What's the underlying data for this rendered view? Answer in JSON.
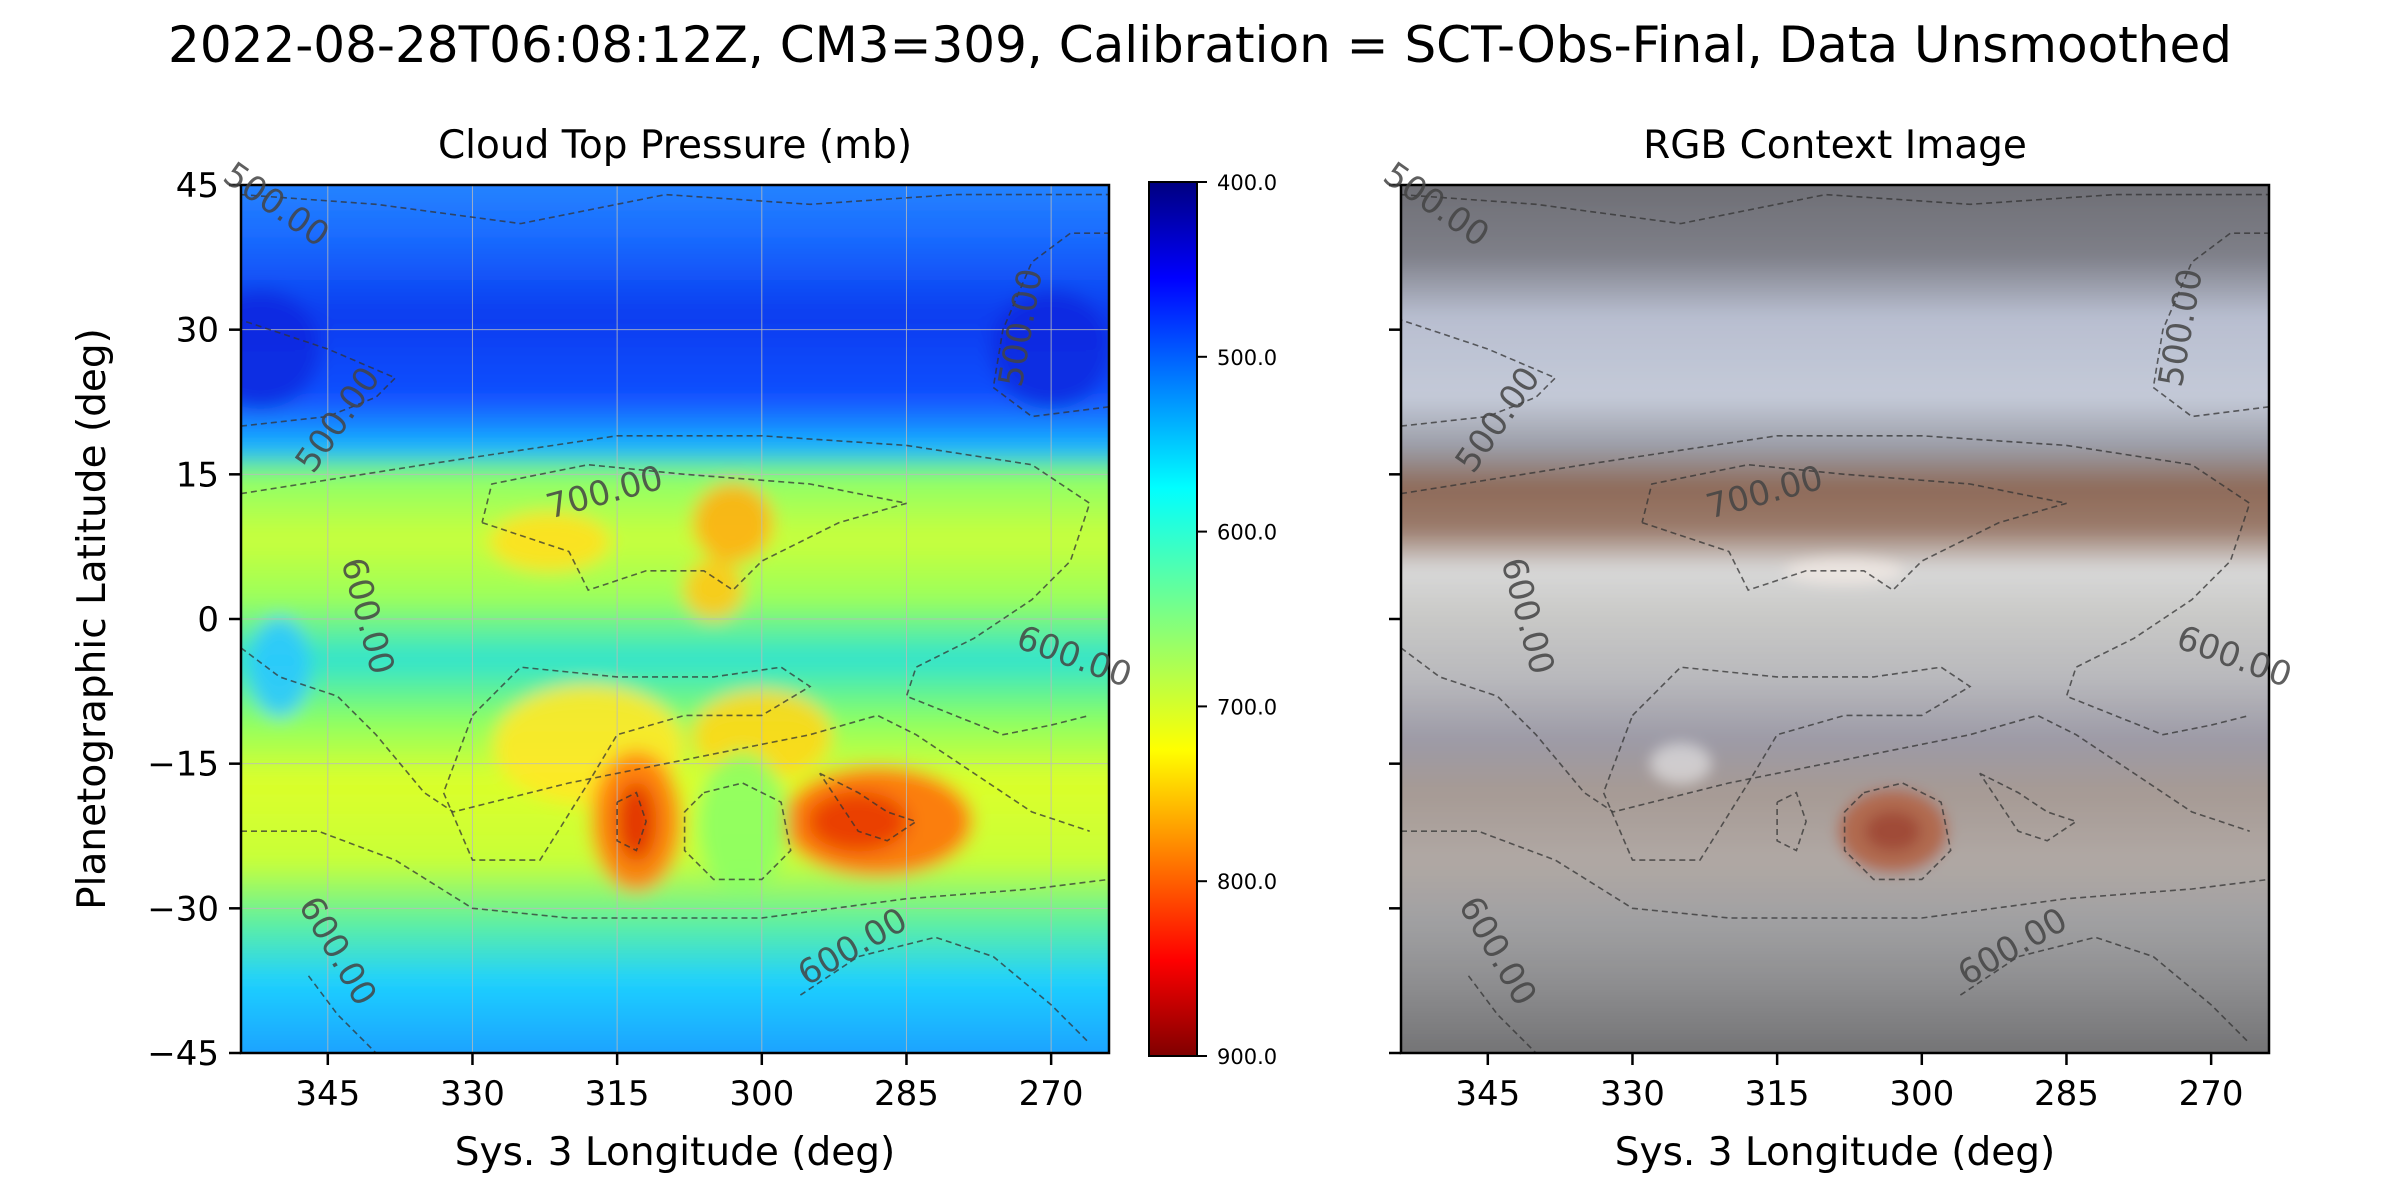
{
  "chart_data": [
    {
      "type": "heatmap",
      "title": "Cloud Top Pressure (mb)",
      "xlabel": "Sys. 3 Longitude (deg)",
      "ylabel": "Planetographic Latitude (deg)",
      "xlim": [
        354,
        264
      ],
      "ylim": [
        -45,
        45
      ],
      "x_ticks": [
        "345",
        "330",
        "315",
        "300",
        "285",
        "270"
      ],
      "x_tick_values": [
        345,
        330,
        315,
        300,
        285,
        270
      ],
      "y_ticks": [
        "45",
        "30",
        "15",
        "0",
        "−15",
        "−30",
        "−45"
      ],
      "y_tick_values": [
        45,
        30,
        15,
        0,
        -15,
        -30,
        -45
      ],
      "colormap": "jet (reversed)",
      "grid": true,
      "colorbar": {
        "range": [
          400,
          900
        ],
        "ticks": [
          "400.0",
          "500.0",
          "600.0",
          "700.0",
          "800.0",
          "900.0"
        ],
        "tick_values": [
          400,
          500,
          600,
          700,
          800,
          900
        ]
      },
      "contour_levels": [
        500,
        600,
        700
      ],
      "contour_labels": [
        {
          "text": "500.00",
          "lon": 351,
          "lat": 42
        },
        {
          "text": "500.00",
          "lon": 343,
          "lat": 20
        },
        {
          "text": "500.00",
          "lon": 272,
          "lat": 30
        },
        {
          "text": "700.00",
          "lon": 316,
          "lat": 12
        },
        {
          "text": "600.00",
          "lon": 342,
          "lat": 0
        },
        {
          "text": "600.00",
          "lon": 268,
          "lat": -5
        },
        {
          "text": "600.00",
          "lon": 345,
          "lat": -35
        },
        {
          "text": "600.00",
          "lon": 290,
          "lat": -35
        }
      ]
    },
    {
      "type": "image",
      "title": "RGB Context Image",
      "xlabel": "Sys. 3 Longitude (deg)",
      "x_ticks": [
        "345",
        "330",
        "315",
        "300",
        "285",
        "270"
      ],
      "x_tick_values": [
        345,
        330,
        315,
        300,
        285,
        270
      ],
      "xlim": [
        354,
        264
      ],
      "ylim": [
        -45,
        45
      ],
      "contour_levels": [
        500,
        600,
        700
      ],
      "contour_labels": [
        {
          "text": "500.00",
          "lon": 351,
          "lat": 42
        },
        {
          "text": "500.00",
          "lon": 343,
          "lat": 20
        },
        {
          "text": "500.00",
          "lon": 272,
          "lat": 30
        },
        {
          "text": "700.00",
          "lon": 316,
          "lat": 12
        },
        {
          "text": "600.00",
          "lon": 342,
          "lat": 0
        },
        {
          "text": "600.00",
          "lon": 268,
          "lat": -5
        },
        {
          "text": "600.00",
          "lon": 345,
          "lat": -35
        },
        {
          "text": "600.00",
          "lon": 290,
          "lat": -35
        }
      ]
    }
  ],
  "figure": {
    "suptitle": "2022-08-28T06:08:12Z, CM3=309, Calibration = SCT-Obs-Final, Data Unsmoothed"
  }
}
